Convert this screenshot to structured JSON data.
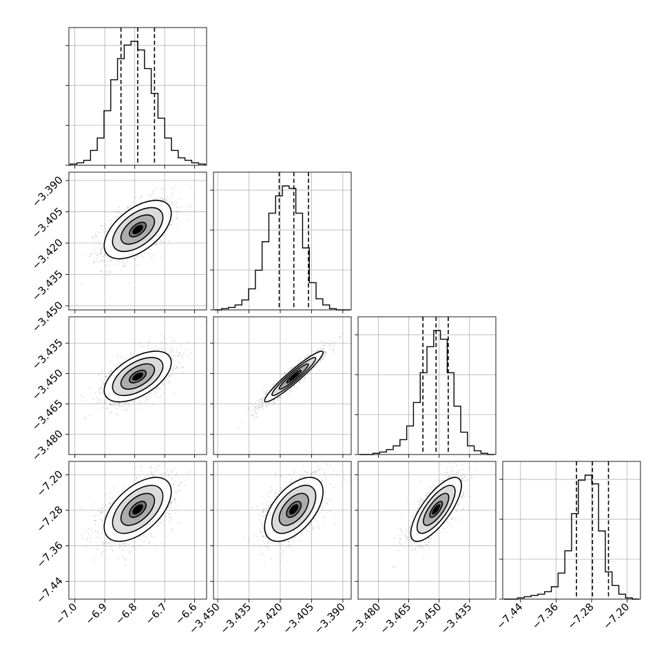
{
  "chart_data": {
    "type": "corner",
    "layout": "lower-triangle",
    "grid": true,
    "n_params": 4,
    "params": [
      {
        "range": [
          -7.02,
          -6.56
        ],
        "median": -6.79,
        "q16": -6.846,
        "q84": -6.734,
        "ticks": [
          "−7.0",
          "−6.9",
          "−6.8",
          "−6.7",
          "−6.6"
        ],
        "tick_values": [
          -7.0,
          -6.9,
          -6.8,
          -6.7,
          -6.6
        ]
      },
      {
        "range": [
          -3.452,
          -3.386
        ],
        "median": -3.4135,
        "q16": -3.4205,
        "q84": -3.4065,
        "ticks": [
          "−3.450",
          "−3.435",
          "−3.420",
          "−3.405",
          "−3.390"
        ],
        "tick_values": [
          -3.45,
          -3.435,
          -3.42,
          -3.405,
          -3.39
        ]
      },
      {
        "range": [
          -3.49,
          -3.422
        ],
        "median": -3.4515,
        "q16": -3.458,
        "q84": -3.4455,
        "ticks": [
          "−3.480",
          "−3.465",
          "−3.450",
          "−3.435"
        ],
        "tick_values": [
          -3.48,
          -3.465,
          -3.45,
          -3.435
        ]
      },
      {
        "range": [
          -7.48,
          -7.17
        ],
        "median": -7.278,
        "q16": -7.314,
        "q84": -7.242,
        "ticks": [
          "−7.44",
          "−7.36",
          "−7.28",
          "−7.20"
        ],
        "tick_values": [
          -7.44,
          -7.36,
          -7.28,
          -7.2
        ]
      }
    ],
    "histograms": [
      [
        0.01,
        0.02,
        0.04,
        0.12,
        0.22,
        0.44,
        0.69,
        0.86,
        0.97,
        1.0,
        0.93,
        0.78,
        0.58,
        0.38,
        0.22,
        0.12,
        0.06,
        0.04,
        0.02,
        0.01
      ],
      [
        0.0,
        0.01,
        0.02,
        0.04,
        0.08,
        0.17,
        0.32,
        0.55,
        0.78,
        0.92,
        1.0,
        0.98,
        0.78,
        0.5,
        0.22,
        0.09,
        0.04,
        0.01,
        0.0,
        0.0
      ],
      [
        0.0,
        0.0,
        0.01,
        0.02,
        0.04,
        0.07,
        0.12,
        0.23,
        0.42,
        0.66,
        0.87,
        1.0,
        0.93,
        0.66,
        0.39,
        0.18,
        0.07,
        0.03,
        0.01,
        0.0
      ],
      [
        0.0,
        0.0,
        0.01,
        0.02,
        0.03,
        0.04,
        0.06,
        0.1,
        0.21,
        0.39,
        0.69,
        0.96,
        1.0,
        0.93,
        0.55,
        0.22,
        0.11,
        0.04,
        0.01,
        0.0
      ]
    ],
    "correlations": [
      [
        1.0,
        0.55,
        0.55,
        0.55
      ],
      [
        0.55,
        1.0,
        0.95,
        0.55
      ],
      [
        0.55,
        0.95,
        1.0,
        0.75
      ],
      [
        0.55,
        0.55,
        0.75,
        1.0
      ]
    ],
    "contour_levels_sigma": [
      0.5,
      1.0,
      1.5,
      2.0
    ],
    "scatter_color": "#888888",
    "density_color": "#000000"
  }
}
